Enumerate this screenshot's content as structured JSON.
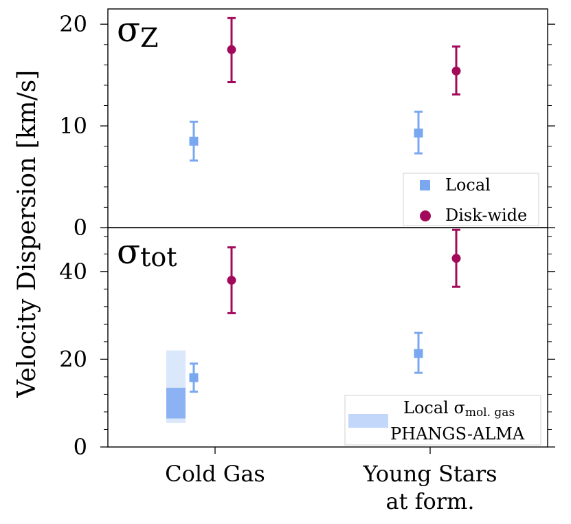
{
  "chart_data": [
    {
      "type": "scatter",
      "panel_label": "σZ",
      "panel_label_main": "σ",
      "panel_label_sub": "Z",
      "categories": [
        "Cold Gas",
        "Young Stars at form."
      ],
      "ylim": [
        0,
        21.5
      ],
      "yticks": [
        0,
        10,
        20
      ],
      "ytick_labels": [
        "0",
        "10",
        "20"
      ],
      "series": [
        {
          "name": "Local",
          "marker": "square",
          "color": "#7aa8f0",
          "values": [
            8.5,
            9.3
          ],
          "err_low": [
            6.6,
            7.3
          ],
          "err_high": [
            10.4,
            11.4
          ]
        },
        {
          "name": "Disk-wide",
          "marker": "circle",
          "color": "#a3095a",
          "values": [
            17.5,
            15.4
          ],
          "err_low": [
            14.3,
            13.1
          ],
          "err_high": [
            20.6,
            17.8
          ]
        }
      ],
      "legend": [
        "Local",
        "Disk-wide"
      ],
      "legend_position": "lower-right"
    },
    {
      "type": "scatter",
      "panel_label": "σtot",
      "panel_label_main": "σ",
      "panel_label_sub": "tot",
      "categories": [
        "Cold Gas",
        "Young Stars at form."
      ],
      "ylim": [
        0,
        50
      ],
      "yticks": [
        0,
        20,
        40
      ],
      "ytick_labels": [
        "0",
        "20",
        "40"
      ],
      "series": [
        {
          "name": "Local",
          "marker": "square",
          "color": "#7aa8f0",
          "values": [
            15.8,
            21.3
          ],
          "err_low": [
            12.6,
            16.9
          ],
          "err_high": [
            19,
            26
          ]
        },
        {
          "name": "Disk-wide",
          "marker": "circle",
          "color": "#a3095a",
          "values": [
            38,
            43
          ],
          "err_low": [
            30.5,
            36.5
          ],
          "err_high": [
            45.5,
            49.5
          ]
        }
      ],
      "bands": [
        {
          "name": "Local σmol.gas PHANGS-ALMA",
          "category": "Cold Gas",
          "outer": [
            5.5,
            22
          ],
          "inner": [
            6.5,
            13.5
          ]
        }
      ],
      "legend": [
        "Local σmol. gas",
        "PHANGS-ALMA"
      ],
      "legend_line1_prefix": "Local σ",
      "legend_line1_sub": "mol. gas",
      "legend_line2": "PHANGS-ALMA",
      "legend_position": "lower-right"
    }
  ],
  "ylabel": "Velocity Dispersion [km/s]",
  "xtick_labels": [
    [
      "Cold Gas"
    ],
    [
      "Young Stars",
      "at form."
    ]
  ],
  "colors": {
    "local": "#7aa8f0",
    "disk_wide": "#a3095a",
    "band_outer": "#dbe7fb",
    "band_inner": "#8cb2f3",
    "legend_band": "#c2d7fa"
  }
}
